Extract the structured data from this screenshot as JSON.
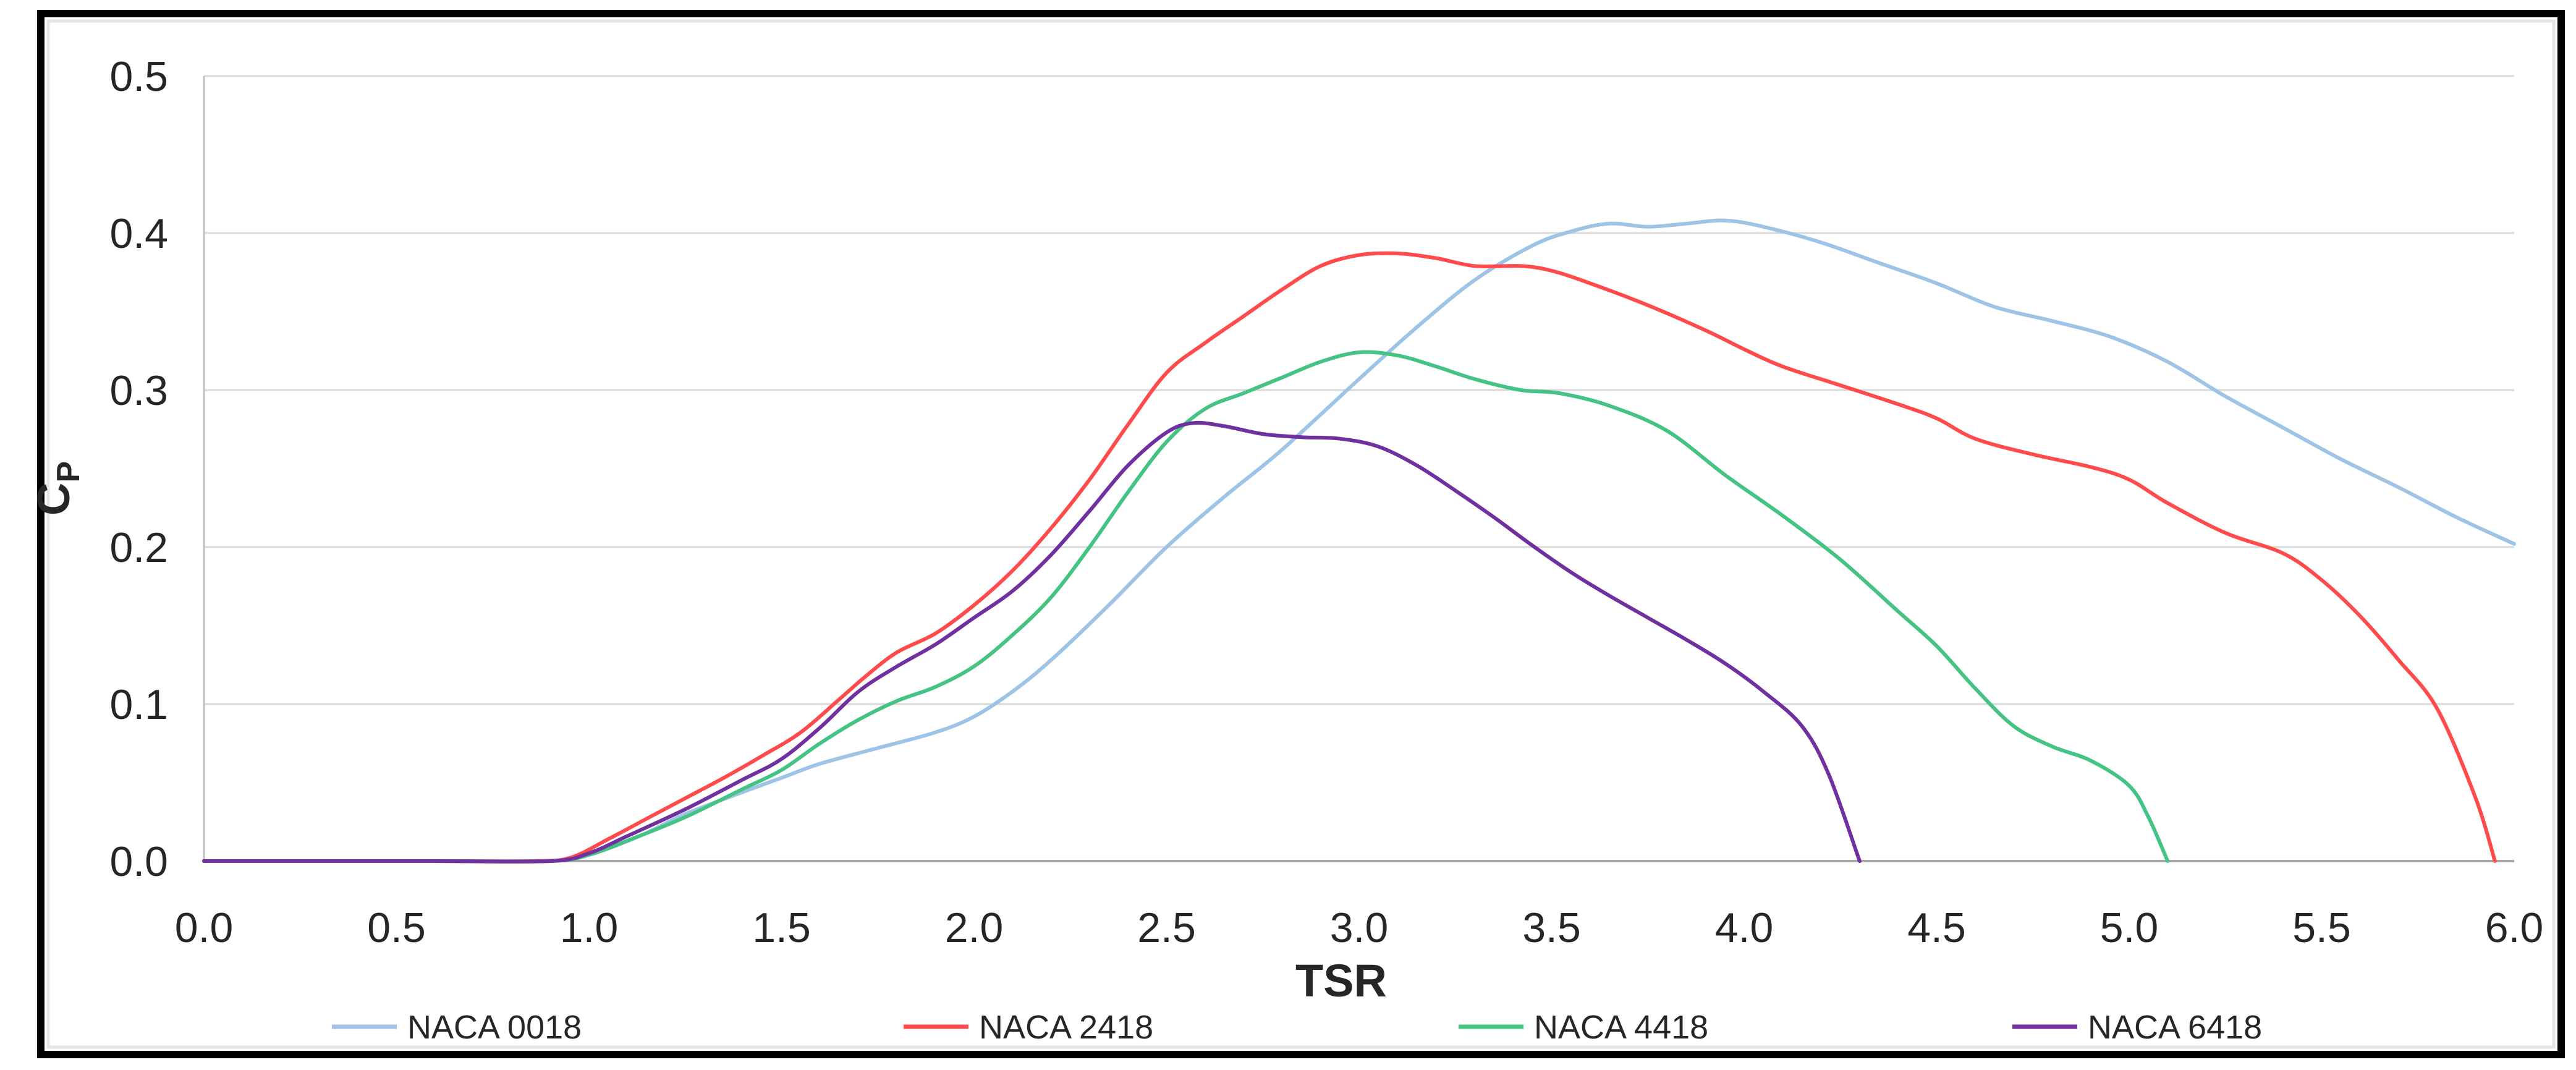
{
  "chart_data": {
    "type": "line",
    "title": "",
    "xlabel": "TSR",
    "ylabel": "CP",
    "ylabel_main": "C",
    "ylabel_sub": "P",
    "xlim": [
      0.0,
      6.0
    ],
    "ylim": [
      0.0,
      0.5
    ],
    "x_tick_labels": [
      "0.0",
      "0.5",
      "1.0",
      "1.5",
      "2.0",
      "2.5",
      "3.0",
      "3.5",
      "4.0",
      "4.5",
      "5.0",
      "5.5",
      "6.0"
    ],
    "y_tick_labels": [
      "0.0",
      "0.1",
      "0.2",
      "0.3",
      "0.4",
      "0.5"
    ],
    "grid": "horizontal",
    "legend_position": "bottom",
    "colors": {
      "gridline": "#D9D9D9",
      "x_axis_line": "#A6A6A6",
      "y_axis_line": "#BFBFBF",
      "frame": "#000000",
      "text": "#262626"
    },
    "series": [
      {
        "name": "NACA 0018",
        "color": "#9DC3E6",
        "points": [
          [
            0,
            0
          ],
          [
            0.3,
            0
          ],
          [
            0.6,
            0
          ],
          [
            0.85,
            0
          ],
          [
            0.95,
            0.001
          ],
          [
            1.05,
            0.008
          ],
          [
            1.15,
            0.018
          ],
          [
            1.25,
            0.03
          ],
          [
            1.4,
            0.044
          ],
          [
            1.5,
            0.053
          ],
          [
            1.6,
            0.062
          ],
          [
            1.75,
            0.072
          ],
          [
            1.9,
            0.082
          ],
          [
            2.0,
            0.092
          ],
          [
            2.1,
            0.108
          ],
          [
            2.2,
            0.128
          ],
          [
            2.35,
            0.163
          ],
          [
            2.5,
            0.2
          ],
          [
            2.65,
            0.232
          ],
          [
            2.8,
            0.262
          ],
          [
            3.0,
            0.307
          ],
          [
            3.15,
            0.34
          ],
          [
            3.3,
            0.37
          ],
          [
            3.45,
            0.392
          ],
          [
            3.55,
            0.401
          ],
          [
            3.65,
            0.406
          ],
          [
            3.75,
            0.404
          ],
          [
            3.85,
            0.406
          ],
          [
            3.95,
            0.408
          ],
          [
            4.05,
            0.404
          ],
          [
            4.2,
            0.394
          ],
          [
            4.35,
            0.381
          ],
          [
            4.5,
            0.368
          ],
          [
            4.65,
            0.353
          ],
          [
            4.8,
            0.344
          ],
          [
            4.95,
            0.334
          ],
          [
            5.1,
            0.318
          ],
          [
            5.25,
            0.296
          ],
          [
            5.4,
            0.276
          ],
          [
            5.55,
            0.256
          ],
          [
            5.7,
            0.238
          ],
          [
            5.85,
            0.219
          ],
          [
            6.0,
            0.202
          ]
        ]
      },
      {
        "name": "NACA 2418",
        "color": "#FF4B4B",
        "points": [
          [
            0,
            0
          ],
          [
            0.3,
            0
          ],
          [
            0.6,
            0
          ],
          [
            0.85,
            0
          ],
          [
            0.95,
            0.002
          ],
          [
            1.05,
            0.014
          ],
          [
            1.15,
            0.027
          ],
          [
            1.25,
            0.04
          ],
          [
            1.35,
            0.053
          ],
          [
            1.45,
            0.067
          ],
          [
            1.55,
            0.082
          ],
          [
            1.65,
            0.103
          ],
          [
            1.72,
            0.118
          ],
          [
            1.8,
            0.133
          ],
          [
            1.9,
            0.145
          ],
          [
            2.0,
            0.163
          ],
          [
            2.1,
            0.185
          ],
          [
            2.2,
            0.212
          ],
          [
            2.3,
            0.243
          ],
          [
            2.4,
            0.278
          ],
          [
            2.5,
            0.311
          ],
          [
            2.6,
            0.33
          ],
          [
            2.7,
            0.347
          ],
          [
            2.8,
            0.364
          ],
          [
            2.9,
            0.379
          ],
          [
            3.0,
            0.386
          ],
          [
            3.1,
            0.387
          ],
          [
            3.2,
            0.384
          ],
          [
            3.3,
            0.379
          ],
          [
            3.42,
            0.379
          ],
          [
            3.5,
            0.376
          ],
          [
            3.6,
            0.368
          ],
          [
            3.75,
            0.354
          ],
          [
            3.9,
            0.338
          ],
          [
            4.0,
            0.326
          ],
          [
            4.1,
            0.315
          ],
          [
            4.25,
            0.303
          ],
          [
            4.4,
            0.291
          ],
          [
            4.5,
            0.282
          ],
          [
            4.6,
            0.269
          ],
          [
            4.75,
            0.259
          ],
          [
            4.9,
            0.251
          ],
          [
            5.0,
            0.243
          ],
          [
            5.1,
            0.228
          ],
          [
            5.25,
            0.209
          ],
          [
            5.4,
            0.196
          ],
          [
            5.5,
            0.179
          ],
          [
            5.6,
            0.156
          ],
          [
            5.7,
            0.128
          ],
          [
            5.8,
            0.097
          ],
          [
            5.9,
            0.04
          ],
          [
            5.95,
            0
          ]
        ]
      },
      {
        "name": "NACA 4418",
        "color": "#44C384",
        "points": [
          [
            0,
            0
          ],
          [
            0.3,
            0
          ],
          [
            0.6,
            0
          ],
          [
            0.9,
            0
          ],
          [
            1.0,
            0.004
          ],
          [
            1.1,
            0.013
          ],
          [
            1.25,
            0.028
          ],
          [
            1.4,
            0.046
          ],
          [
            1.5,
            0.058
          ],
          [
            1.6,
            0.075
          ],
          [
            1.7,
            0.09
          ],
          [
            1.8,
            0.102
          ],
          [
            1.9,
            0.111
          ],
          [
            2.0,
            0.124
          ],
          [
            2.1,
            0.144
          ],
          [
            2.2,
            0.168
          ],
          [
            2.3,
            0.2
          ],
          [
            2.4,
            0.235
          ],
          [
            2.5,
            0.267
          ],
          [
            2.6,
            0.288
          ],
          [
            2.7,
            0.298
          ],
          [
            2.8,
            0.308
          ],
          [
            2.9,
            0.318
          ],
          [
            3.0,
            0.324
          ],
          [
            3.1,
            0.322
          ],
          [
            3.2,
            0.315
          ],
          [
            3.3,
            0.307
          ],
          [
            3.42,
            0.3
          ],
          [
            3.52,
            0.298
          ],
          [
            3.65,
            0.29
          ],
          [
            3.8,
            0.274
          ],
          [
            3.95,
            0.246
          ],
          [
            4.1,
            0.22
          ],
          [
            4.25,
            0.192
          ],
          [
            4.4,
            0.159
          ],
          [
            4.5,
            0.137
          ],
          [
            4.6,
            0.11
          ],
          [
            4.7,
            0.086
          ],
          [
            4.8,
            0.073
          ],
          [
            4.9,
            0.064
          ],
          [
            5.0,
            0.048
          ],
          [
            5.05,
            0.028
          ],
          [
            5.1,
            0
          ]
        ]
      },
      {
        "name": "NACA 6418",
        "color": "#7030A0",
        "points": [
          [
            0,
            0
          ],
          [
            0.3,
            0
          ],
          [
            0.6,
            0
          ],
          [
            0.9,
            0
          ],
          [
            1.0,
            0.005
          ],
          [
            1.1,
            0.016
          ],
          [
            1.25,
            0.033
          ],
          [
            1.4,
            0.052
          ],
          [
            1.5,
            0.065
          ],
          [
            1.6,
            0.085
          ],
          [
            1.7,
            0.108
          ],
          [
            1.8,
            0.124
          ],
          [
            1.9,
            0.138
          ],
          [
            2.0,
            0.155
          ],
          [
            2.1,
            0.172
          ],
          [
            2.2,
            0.195
          ],
          [
            2.3,
            0.223
          ],
          [
            2.4,
            0.252
          ],
          [
            2.5,
            0.273
          ],
          [
            2.57,
            0.279
          ],
          [
            2.65,
            0.277
          ],
          [
            2.75,
            0.272
          ],
          [
            2.85,
            0.27
          ],
          [
            2.95,
            0.269
          ],
          [
            3.05,
            0.264
          ],
          [
            3.15,
            0.252
          ],
          [
            3.25,
            0.236
          ],
          [
            3.35,
            0.219
          ],
          [
            3.45,
            0.201
          ],
          [
            3.55,
            0.184
          ],
          [
            3.65,
            0.169
          ],
          [
            3.75,
            0.155
          ],
          [
            3.85,
            0.141
          ],
          [
            3.95,
            0.126
          ],
          [
            4.05,
            0.108
          ],
          [
            4.15,
            0.086
          ],
          [
            4.22,
            0.055
          ],
          [
            4.3,
            0
          ]
        ]
      }
    ]
  }
}
